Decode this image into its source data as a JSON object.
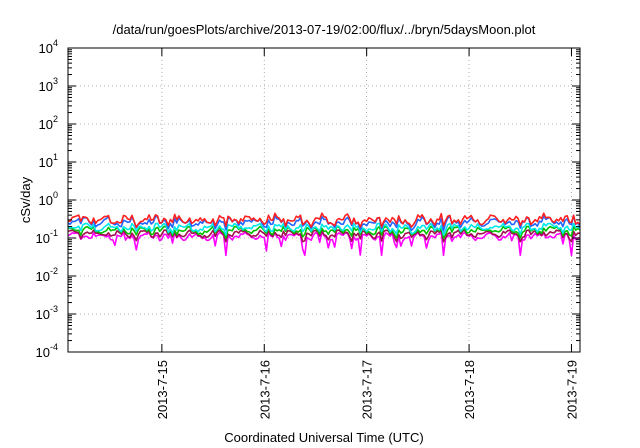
{
  "chart_data": {
    "type": "line",
    "title": "/data/run/goesPlots/archive/2013-07-19/02:00/flux/../bryn/5daysMoon.plot",
    "xlabel": "Coordinated Universal Time (UTC)",
    "ylabel": "cSv/day",
    "y_scale": "log",
    "ylim": [
      0.0001,
      10000
    ],
    "y_ticks": [
      {
        "base": "10",
        "exp": "-4",
        "value": 0.0001
      },
      {
        "base": "10",
        "exp": "-3",
        "value": 0.001
      },
      {
        "base": "10",
        "exp": "-2",
        "value": 0.01
      },
      {
        "base": "10",
        "exp": "-1",
        "value": 0.1
      },
      {
        "base": "10",
        "exp": "0",
        "value": 1
      },
      {
        "base": "10",
        "exp": "1",
        "value": 10
      },
      {
        "base": "10",
        "exp": "2",
        "value": 100
      },
      {
        "base": "10",
        "exp": "3",
        "value": 1000
      },
      {
        "base": "10",
        "exp": "4",
        "value": 10000
      }
    ],
    "xlim": [
      "2013-07-14T02:00",
      "2013-07-19T02:00"
    ],
    "x_ticks": [
      {
        "label": "2013-7-15",
        "value": "2013-07-15T00:00"
      },
      {
        "label": "2013-7-16",
        "value": "2013-07-16T00:00"
      },
      {
        "label": "2013-7-17",
        "value": "2013-07-17T00:00"
      },
      {
        "label": "2013-7-18",
        "value": "2013-07-18T00:00"
      },
      {
        "label": "2013-7-19",
        "value": "2013-07-19T00:00"
      }
    ],
    "grid": true,
    "legend": "none",
    "series": [
      {
        "color": "#ff00ff",
        "typical_value": 0.11,
        "min_value": 0.035,
        "max_value": 0.14
      },
      {
        "color": "#a01050",
        "typical_value": 0.13,
        "min_value": 0.08,
        "max_value": 0.16
      },
      {
        "color": "#00c000",
        "typical_value": 0.16,
        "min_value": 0.1,
        "max_value": 0.2
      },
      {
        "color": "#00e8e8",
        "typical_value": 0.19,
        "min_value": 0.12,
        "max_value": 0.24
      },
      {
        "color": "#2266ff",
        "typical_value": 0.26,
        "min_value": 0.15,
        "max_value": 0.4
      },
      {
        "color": "#ff2020",
        "typical_value": 0.3,
        "min_value": 0.18,
        "max_value": 0.45
      }
    ]
  }
}
